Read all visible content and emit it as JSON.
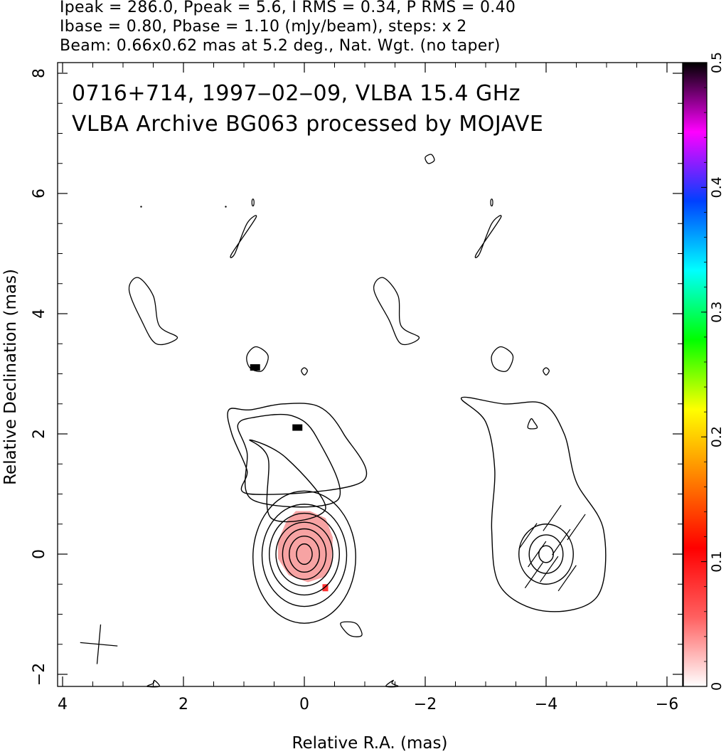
{
  "header": {
    "line1": "Ipeak = 286.0, Ppeak = 5.6, I RMS = 0.34, P RMS = 0.40",
    "line2": "Ibase = 0.80, Pbase = 1.10 (mJy/beam), steps: x 2",
    "line3": "Beam: 0.66x0.62 mas at 5.2 deg., Nat. Wgt. (no taper)"
  },
  "chart_data": {
    "type": "contour",
    "title_line1": "0716+714, 1997‒02‒09, VLBA 15.4 GHz",
    "title_line2": "VLBA Archive BG063 processed by MOJAVE",
    "xlabel": "Relative R.A. (mas)",
    "ylabel": "Relative Declination (mas)",
    "xlim": [
      4.2,
      -6.2
    ],
    "ylim": [
      -2.2,
      8.2
    ],
    "x_ticks": [
      4,
      2,
      0,
      -2,
      -4,
      -6
    ],
    "x_tick_labels": [
      "4",
      "2",
      "0",
      "−2",
      "−4",
      "−6"
    ],
    "y_ticks": [
      -2,
      0,
      2,
      4,
      6,
      8
    ],
    "y_tick_labels": [
      "−2",
      "0",
      "2",
      "4",
      "6",
      "8"
    ],
    "colorbar": {
      "range": [
        0,
        0.5
      ],
      "ticks": [
        0,
        0.1,
        0.2,
        0.3,
        0.4,
        0.5
      ],
      "tick_labels": [
        "0",
        "0.1",
        "0.2",
        "0.3",
        "0.4",
        "0.5"
      ],
      "stops": [
        "#ffffff",
        "#ff6060",
        "#ff0000",
        "#ff8000",
        "#ffff00",
        "#00ff00",
        "#00ffff",
        "#0040ff",
        "#ff00ff",
        "#000000"
      ]
    },
    "left_panel": {
      "core_position": [
        0,
        0
      ],
      "core_contours": [
        {
          "rx": 0.85,
          "ry": 1.1,
          "cy": -0.05
        },
        {
          "rx": 0.7,
          "ry": 0.85,
          "cy": -0.02
        },
        {
          "rx": 0.58,
          "ry": 0.68,
          "cy": 0.0
        },
        {
          "rx": 0.47,
          "ry": 0.53,
          "cy": 0.0
        },
        {
          "rx": 0.36,
          "ry": 0.42,
          "cy": 0.0
        },
        {
          "rx": 0.25,
          "ry": 0.3,
          "cy": 0.0
        },
        {
          "rx": 0.13,
          "ry": 0.17,
          "cy": 0.0
        }
      ],
      "jet_contours": [
        [
          [
            -0.95,
            1.2
          ],
          [
            -0.65,
            2.0
          ],
          [
            -0.25,
            2.45
          ],
          [
            0.35,
            2.5
          ],
          [
            0.9,
            2.4
          ],
          [
            1.25,
            2.4
          ],
          [
            1.2,
            2.0
          ],
          [
            0.95,
            1.4
          ],
          [
            0.9,
            1.0
          ]
        ],
        [
          [
            0.85,
            0.9
          ],
          [
            0.95,
            1.7
          ],
          [
            1.1,
            2.15
          ],
          [
            0.8,
            2.28
          ],
          [
            0.2,
            2.3
          ],
          [
            -0.2,
            1.95
          ],
          [
            -0.55,
            0.9
          ]
        ],
        [
          [
            0.55,
            0.6
          ],
          [
            0.6,
            1.6
          ],
          [
            0.9,
            1.9
          ],
          [
            0.3,
            1.6
          ],
          [
            -0.35,
            0.75
          ]
        ]
      ],
      "polarization_patch_center": [
        0.0,
        0.1
      ],
      "polarization_marks": [
        [
          0.85,
          3.1
        ],
        [
          0.15,
          2.1
        ]
      ]
    },
    "right_panel": {
      "core_position": [
        -4,
        0
      ],
      "contour_outer": [
        [
          -2.6,
          2.6
        ],
        [
          -3.3,
          2.5
        ],
        [
          -3.95,
          2.5
        ],
        [
          -4.3,
          2.0
        ],
        [
          -4.5,
          1.2
        ],
        [
          -4.95,
          0.4
        ],
        [
          -4.85,
          -0.7
        ],
        [
          -4.0,
          -0.95
        ],
        [
          -3.25,
          -0.55
        ],
        [
          -3.1,
          0.4
        ],
        [
          -3.15,
          1.4
        ],
        [
          -3.0,
          2.2
        ]
      ],
      "inner_contours": [
        {
          "rx": 0.45,
          "ry": 0.5
        },
        {
          "rx": 0.28,
          "ry": 0.32
        },
        {
          "rx": 0.12,
          "ry": 0.14
        }
      ],
      "evpa_sticks": [
        [
          -3.7,
          0.3,
          35
        ],
        [
          -3.85,
          0.0,
          35
        ],
        [
          -4.05,
          -0.25,
          35
        ],
        [
          -4.25,
          0.2,
          35
        ],
        [
          -4.35,
          -0.4,
          35
        ],
        [
          -4.5,
          0.45,
          35
        ],
        [
          -3.8,
          -0.35,
          35
        ],
        [
          -4.1,
          0.6,
          35
        ]
      ]
    },
    "beam": {
      "major_mas": 0.66,
      "minor_mas": 0.62,
      "pa_deg": 5.2
    }
  }
}
